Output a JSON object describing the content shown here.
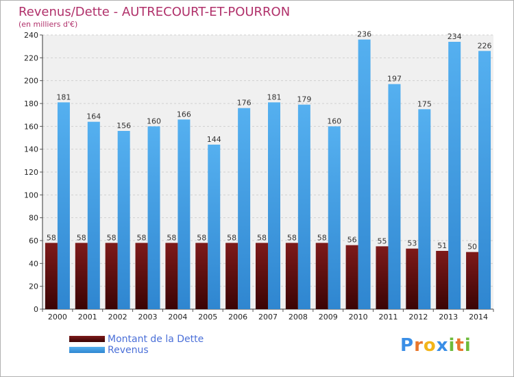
{
  "chart_data": {
    "type": "bar",
    "title": "Revenus/Dette - AUTRECOURT-ET-POURRON",
    "subtitle": "(en milliers d'€)",
    "categories": [
      "2000",
      "2001",
      "2002",
      "2003",
      "2004",
      "2005",
      "2006",
      "2007",
      "2008",
      "2009",
      "2010",
      "2011",
      "2012",
      "2013",
      "2014"
    ],
    "series": [
      {
        "name": "Montant de la Dette",
        "color": "#6b0d0d",
        "values": [
          58,
          58,
          58,
          58,
          58,
          58,
          58,
          58,
          58,
          58,
          56,
          55,
          53,
          51,
          50
        ]
      },
      {
        "name": "Revenus",
        "color": "#4aa3e8",
        "values": [
          181,
          164,
          156,
          160,
          166,
          144,
          176,
          181,
          179,
          160,
          236,
          197,
          175,
          234,
          226
        ]
      }
    ],
    "yticks": [
      0,
      20,
      40,
      60,
      80,
      100,
      120,
      140,
      160,
      180,
      200,
      220,
      240
    ],
    "ylim": [
      0,
      240
    ],
    "grid": true,
    "legend": "bottom-left"
  },
  "logo": {
    "letters": [
      "P",
      "r",
      "o",
      "x",
      "i",
      "t",
      "i"
    ],
    "colors": [
      "#3a8ee6",
      "#e8762c",
      "#f2b51a",
      "#3a8ee6",
      "#6dbb3b",
      "#e8762c",
      "#6dbb3b"
    ]
  }
}
